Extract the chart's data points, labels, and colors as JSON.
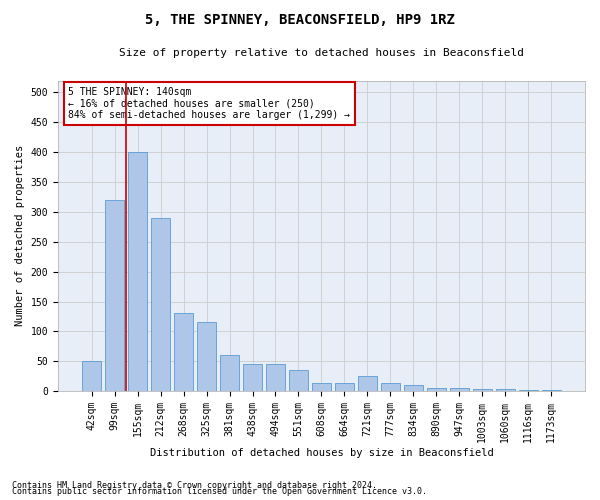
{
  "title": "5, THE SPINNEY, BEACONSFIELD, HP9 1RZ",
  "subtitle": "Size of property relative to detached houses in Beaconsfield",
  "xlabel": "Distribution of detached houses by size in Beaconsfield",
  "ylabel": "Number of detached properties",
  "footnote1": "Contains HM Land Registry data © Crown copyright and database right 2024.",
  "footnote2": "Contains public sector information licensed under the Open Government Licence v3.0.",
  "categories": [
    "42sqm",
    "99sqm",
    "155sqm",
    "212sqm",
    "268sqm",
    "325sqm",
    "381sqm",
    "438sqm",
    "494sqm",
    "551sqm",
    "608sqm",
    "664sqm",
    "721sqm",
    "777sqm",
    "834sqm",
    "890sqm",
    "947sqm",
    "1003sqm",
    "1060sqm",
    "1116sqm",
    "1173sqm"
  ],
  "values": [
    50,
    320,
    400,
    290,
    130,
    115,
    60,
    45,
    45,
    35,
    13,
    13,
    25,
    13,
    10,
    6,
    6,
    4,
    4,
    2,
    2
  ],
  "bar_color": "#aec6e8",
  "bar_edge_color": "#5b9bd5",
  "grid_color": "#cccccc",
  "bg_color": "#e8eef7",
  "vline_color": "#cc0000",
  "vline_pos": 1.5,
  "annotation_text": "5 THE SPINNEY: 140sqm\n← 16% of detached houses are smaller (250)\n84% of semi-detached houses are larger (1,299) →",
  "annotation_box_color": "#cc0000",
  "ylim": [
    0,
    520
  ],
  "yticks": [
    0,
    50,
    100,
    150,
    200,
    250,
    300,
    350,
    400,
    450,
    500
  ],
  "title_fontsize": 10,
  "subtitle_fontsize": 8,
  "axis_label_fontsize": 7.5,
  "tick_fontsize": 7,
  "footnote_fontsize": 6
}
